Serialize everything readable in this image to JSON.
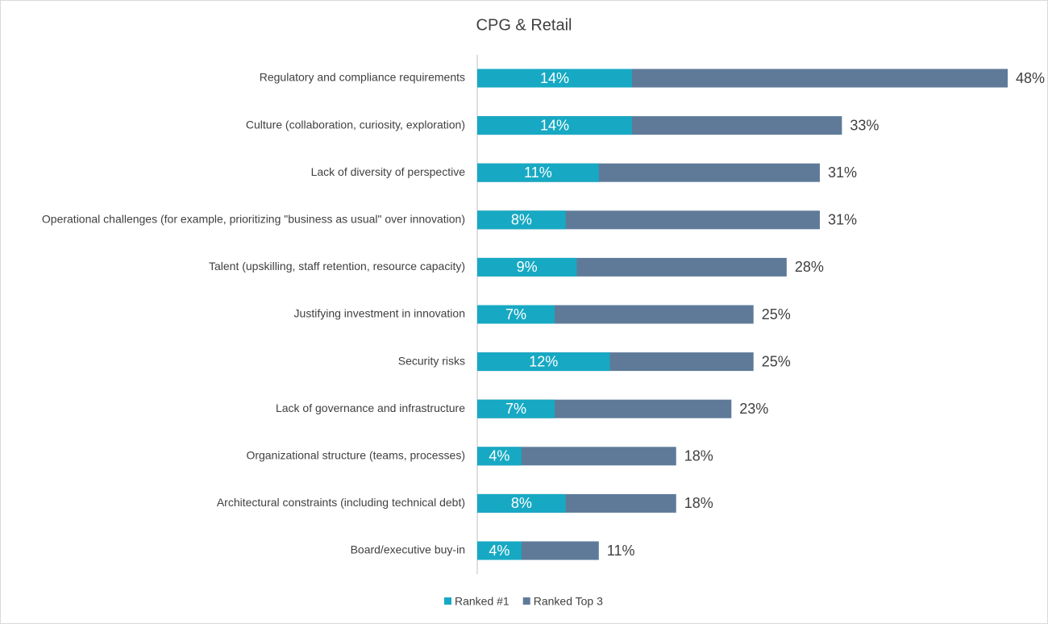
{
  "chart_data": {
    "type": "bar",
    "orientation": "horizontal",
    "overlap": true,
    "title": "CPG & Retail",
    "categories": [
      "Regulatory and compliance requirements",
      "Culture (collaboration, curiosity, exploration)",
      "Lack of diversity of perspective",
      "Operational challenges (for example, prioritizing \"business as usual\" over innovation)",
      "Talent (upskilling, staff retention, resource capacity)",
      "Justifying investment in innovation",
      "Security risks",
      "Lack of governance and infrastructure",
      "Organizational structure (teams, processes)",
      "Architectural constraints (including technical debt)",
      "Board/executive buy-in"
    ],
    "series": [
      {
        "name": "Ranked #1",
        "color": "#17a9c3",
        "values": [
          14,
          14,
          11,
          8,
          9,
          7,
          12,
          7,
          4,
          8,
          4
        ],
        "value_labels": [
          "14%",
          "14%",
          "11%",
          "8%",
          "9%",
          "7%",
          "12%",
          "7%",
          "4%",
          "8%",
          "4%"
        ]
      },
      {
        "name": "Ranked Top 3",
        "color": "#5f7a99",
        "values": [
          48,
          33,
          31,
          31,
          28,
          25,
          25,
          23,
          18,
          18,
          11
        ],
        "value_labels": [
          "48%",
          "33%",
          "31%",
          "31%",
          "28%",
          "25%",
          "25%",
          "23%",
          "18%",
          "18%",
          "11%"
        ]
      }
    ],
    "legend": "bottom"
  }
}
